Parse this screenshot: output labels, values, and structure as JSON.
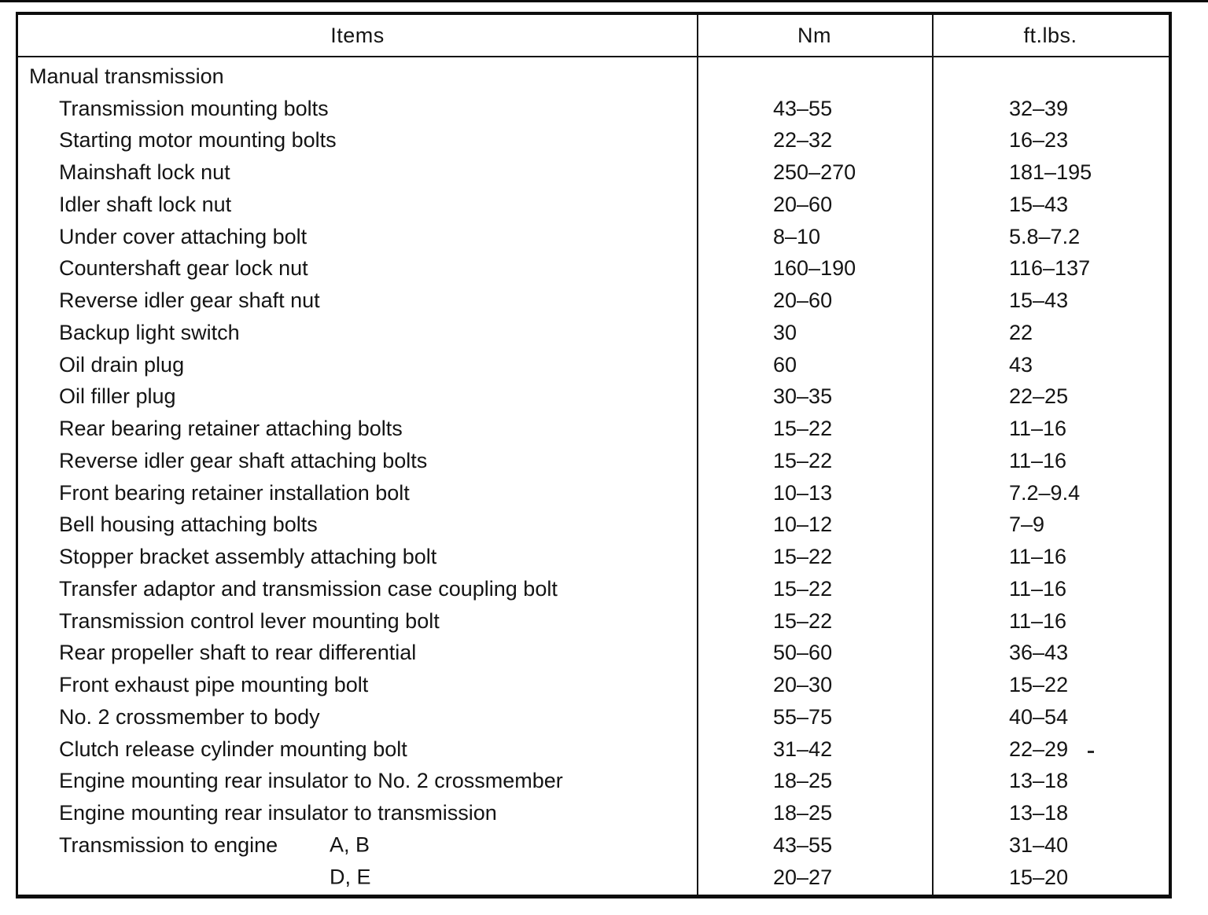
{
  "table": {
    "columns": {
      "items": "Items",
      "nm": "Nm",
      "ftlbs": "ft.lbs."
    },
    "rows": [
      {
        "label": "Manual transmission",
        "indent": 0,
        "nm": "",
        "ft": ""
      },
      {
        "label": "Transmission mounting bolts",
        "indent": 1,
        "nm": "43–55",
        "ft": "32–39"
      },
      {
        "label": "Starting motor mounting bolts",
        "indent": 1,
        "nm": "22–32",
        "ft": "16–23"
      },
      {
        "label": "Mainshaft lock nut",
        "indent": 1,
        "nm": "250–270",
        "ft": "181–195"
      },
      {
        "label": "Idler shaft lock nut",
        "indent": 1,
        "nm": "20–60",
        "ft": "15–43"
      },
      {
        "label": "Under cover attaching bolt",
        "indent": 1,
        "nm": "8–10",
        "ft": "5.8–7.2"
      },
      {
        "label": "Countershaft gear lock nut",
        "indent": 1,
        "nm": "160–190",
        "ft": "116–137"
      },
      {
        "label": "Reverse idler gear shaft nut",
        "indent": 1,
        "nm": "20–60",
        "ft": "15–43"
      },
      {
        "label": "Backup light switch",
        "indent": 1,
        "nm": "30",
        "ft": "22"
      },
      {
        "label": "Oil drain plug",
        "indent": 1,
        "nm": "60",
        "ft": "43"
      },
      {
        "label": "Oil filler plug",
        "indent": 1,
        "nm": "30–35",
        "ft": "22–25"
      },
      {
        "label": "Rear bearing retainer attaching bolts",
        "indent": 1,
        "nm": "15–22",
        "ft": "11–16"
      },
      {
        "label": "Reverse idler gear shaft attaching bolts",
        "indent": 1,
        "nm": "15–22",
        "ft": "11–16"
      },
      {
        "label": "Front bearing retainer installation bolt",
        "indent": 1,
        "nm": "10–13",
        "ft": "7.2–9.4"
      },
      {
        "label": "Bell housing attaching bolts",
        "indent": 1,
        "nm": "10–12",
        "ft": "7–9"
      },
      {
        "label": "Stopper bracket assembly attaching bolt",
        "indent": 1,
        "nm": "15–22",
        "ft": "11–16"
      },
      {
        "label": "Transfer adaptor and transmission case coupling bolt",
        "indent": 1,
        "nm": "15–22",
        "ft": "11–16"
      },
      {
        "label": "Transmission control lever mounting bolt",
        "indent": 1,
        "nm": "15–22",
        "ft": "11–16"
      },
      {
        "label": "Rear propeller shaft to rear differential",
        "indent": 1,
        "nm": "50–60",
        "ft": "36–43"
      },
      {
        "label": "Front exhaust pipe mounting bolt",
        "indent": 1,
        "nm": "20–30",
        "ft": "15–22"
      },
      {
        "label": "No. 2 crossmember to body",
        "indent": 1,
        "nm": "55–75",
        "ft": "40–54"
      },
      {
        "label": "Clutch release cylinder mounting bolt",
        "indent": 1,
        "nm": "31–42",
        "ft": "22–29"
      },
      {
        "label": "Engine mounting rear insulator to No. 2 crossmember",
        "indent": 1,
        "nm": "18–25",
        "ft": "13–18"
      },
      {
        "label": "Engine mounting rear insulator to transmission",
        "indent": 1,
        "nm": "18–25",
        "ft": "13–18"
      },
      {
        "label": "Transmission to engine",
        "variant": "A, B",
        "indent": 1,
        "nm": "43–55",
        "ft": "31–40"
      },
      {
        "label": "",
        "variant": "D, E",
        "indent": 1,
        "nm": "20–27",
        "ft": "15–20"
      }
    ]
  }
}
